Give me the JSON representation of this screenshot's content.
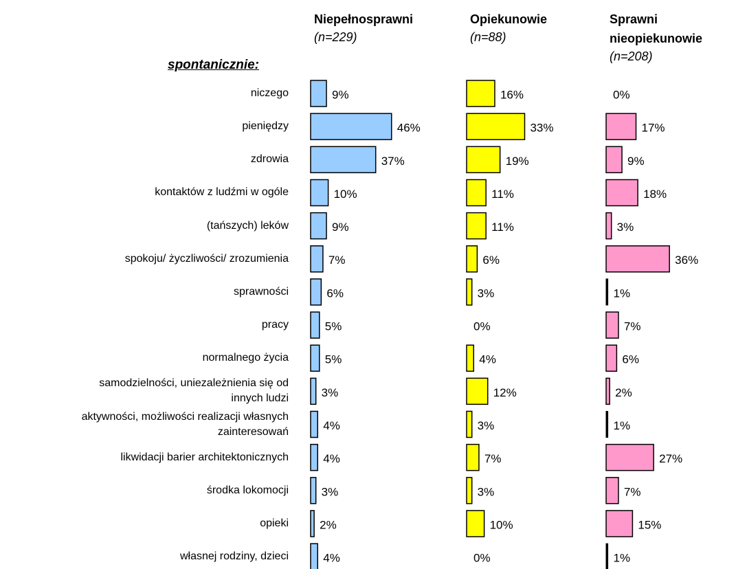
{
  "chart_data": {
    "type": "bar",
    "orientation": "horizontal",
    "section_label": "spontanicznie:",
    "categories": [
      "niczego",
      "pieniędzy",
      "zdrowia",
      "kontaktów z ludźmi w ogóle",
      "(tańszych) leków",
      "spokoju/ życzliwości/ zrozumienia",
      "sprawności",
      "pracy",
      "normalnego życia",
      "samodzielności, uniezależnienia się od\ninnych ludzi",
      "aktywności, możliwości realizacji własnych\nzainteresowań",
      "likwidacji barier architektonicznych",
      "środka lokomocji",
      "opieki",
      "własnej rodziny, dzieci"
    ],
    "series": [
      {
        "name": "Niepełnosprawni",
        "subtitle": "(n=229)",
        "color": "#99ccff",
        "values": [
          9,
          46,
          37,
          10,
          9,
          7,
          6,
          5,
          5,
          3,
          4,
          4,
          3,
          2,
          4
        ],
        "value_labels": [
          "9%",
          "46%",
          "37%",
          "10%",
          "9%",
          "7%",
          "6%",
          "5%",
          "5%",
          "3%",
          "4%",
          "4%",
          "3%",
          "2%",
          "4%"
        ]
      },
      {
        "name": "Opiekunowie",
        "subtitle": "(n=88)",
        "color": "#ffff00",
        "values": [
          16,
          33,
          19,
          11,
          11,
          6,
          3,
          0,
          4,
          12,
          3,
          7,
          3,
          10,
          0
        ],
        "value_labels": [
          "16%",
          "33%",
          "19%",
          "11%",
          "11%",
          "6%",
          "3%",
          "0%",
          "4%",
          "12%",
          "3%",
          "7%",
          "3%",
          "10%",
          "0%"
        ]
      },
      {
        "name": "Sprawni nieopiekunowie",
        "subtitle": "(n=208)",
        "color": "#ff99cc",
        "values": [
          0,
          17,
          9,
          18,
          3,
          36,
          1,
          7,
          6,
          2,
          1,
          27,
          7,
          15,
          1
        ],
        "value_labels": [
          "0%",
          "17%",
          "9%",
          "18%",
          "3%",
          "36%",
          "1%",
          "7%",
          "6%",
          "2%",
          "1%",
          "27%",
          "7%",
          "15%",
          "1%"
        ]
      }
    ]
  }
}
